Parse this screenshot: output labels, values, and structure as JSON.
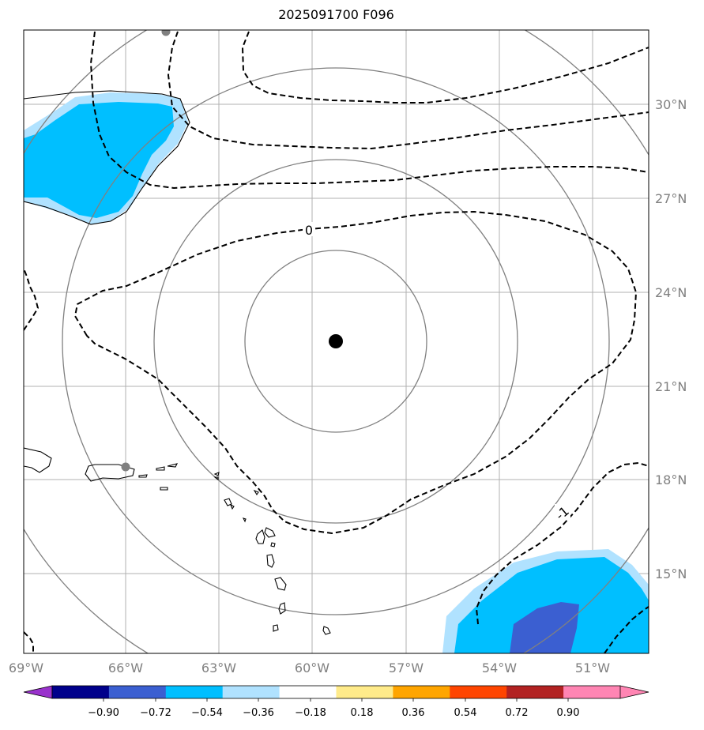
{
  "title": "2025091700 F096",
  "map": {
    "lon_labels": [
      "69°W",
      "66°W",
      "63°W",
      "60°W",
      "57°W",
      "54°W",
      "51°W"
    ],
    "lat_labels": [
      "30°N",
      "27°N",
      "24°N",
      "21°N",
      "18°N",
      "15°N"
    ],
    "contour_labels": [
      "0",
      "-1"
    ],
    "center_marker": "storm-center",
    "colors": {
      "light_blue": "#b0e2ff",
      "deep_sky_blue": "#00bfff",
      "royal_blue": "#3b5fd1",
      "gridline": "#b0b0b0",
      "range_ring": "#808080"
    }
  },
  "colorbar": {
    "tick_labels": [
      "−0.90",
      "−0.72",
      "−0.54",
      "−0.36",
      "−0.18",
      "0.18",
      "0.36",
      "0.54",
      "0.72",
      "0.90"
    ],
    "colors": [
      "#9932cc",
      "#00008b",
      "#3b5fd1",
      "#00bfff",
      "#b0e2ff",
      "#ffffff",
      "#ffeb8a",
      "#ffa500",
      "#ff4500",
      "#b22222",
      "#ff85b3",
      "#ff85b3"
    ]
  }
}
